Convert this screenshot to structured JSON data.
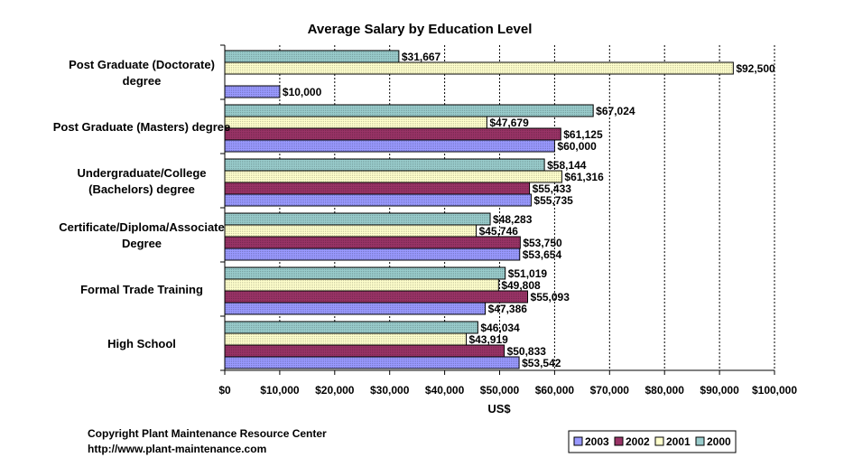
{
  "chart_data": {
    "type": "bar",
    "orientation": "horizontal",
    "title": "Average Salary by Education Level",
    "xlabel": "US$",
    "ylabel": "",
    "xlim": [
      0,
      100000
    ],
    "x_ticks": [
      "$0",
      "$10,000",
      "$20,000",
      "$30,000",
      "$40,000",
      "$50,000",
      "$60,000",
      "$70,000",
      "$80,000",
      "$90,000",
      "$100,000"
    ],
    "grid": "vertical dotted",
    "legend_position": "bottom-right",
    "categories": [
      "Post Graduate (Doctorate) degree",
      "Post Graduate (Masters) degree",
      "Undergraduate/College (Bachelors) degree",
      "Certificate/Diploma/Associate Degree",
      "Formal Trade Training",
      "High School"
    ],
    "category_label_lines": [
      [
        "Post Graduate (Doctorate)",
        "degree"
      ],
      [
        "Post Graduate (Masters) degree"
      ],
      [
        "Undergraduate/College",
        "(Bachelors) degree"
      ],
      [
        "Certificate/Diploma/Associate",
        "Degree"
      ],
      [
        "Formal Trade Training"
      ],
      [
        "High School"
      ]
    ],
    "series": [
      {
        "name": "2000",
        "color": "#99CCCC",
        "values": [
          31667,
          67024,
          58144,
          48283,
          51019,
          46034
        ],
        "labels": [
          "$31,667",
          "$67,024",
          "$58,144",
          "$48,283",
          "$51,019",
          "$46,034"
        ]
      },
      {
        "name": "2001",
        "color": "#FFFFCC",
        "values": [
          92500,
          47679,
          61316,
          45746,
          49808,
          43919
        ],
        "labels": [
          "$92,500",
          "$47,679",
          "$61,316",
          "$45,746",
          "$49,808",
          "$43,919"
        ]
      },
      {
        "name": "2002",
        "color": "#993366",
        "values": [
          null,
          61125,
          55433,
          53750,
          55093,
          50833
        ],
        "labels": [
          "",
          "$61,125",
          "$55,433",
          "$53,750",
          "$55,093",
          "$50,833"
        ]
      },
      {
        "name": "2003",
        "color": "#9999FF",
        "values": [
          10000,
          60000,
          55735,
          53654,
          47386,
          53542
        ],
        "labels": [
          "$10,000",
          "$60,000",
          "$55,735",
          "$53,654",
          "$47,386",
          "$53,542"
        ]
      }
    ],
    "legend_order": [
      "2003",
      "2002",
      "2001",
      "2000"
    ]
  },
  "copyright": {
    "line1": "Copyright Plant Maintenance Resource Center",
    "line2": "http://www.plant-maintenance.com"
  }
}
